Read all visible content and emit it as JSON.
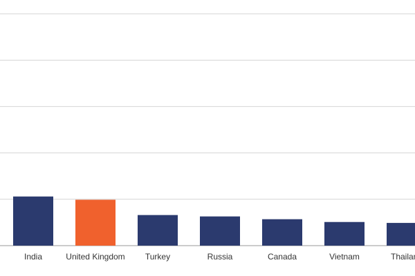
{
  "chart_data": {
    "type": "bar",
    "categories": [
      "India",
      "United Kingdom",
      "Turkey",
      "Russia",
      "Canada",
      "Vietnam",
      "Thailand"
    ],
    "values": [
      1.06,
      0.99,
      0.66,
      0.63,
      0.57,
      0.51,
      0.49
    ],
    "colors": [
      "#2b3a6e",
      "#f0612d",
      "#2b3a6e",
      "#2b3a6e",
      "#2b3a6e",
      "#2b3a6e",
      "#2b3a6e"
    ],
    "ylim": [
      0,
      5
    ],
    "yticks": [
      0,
      1,
      2,
      3,
      4,
      5
    ],
    "grid": true
  }
}
